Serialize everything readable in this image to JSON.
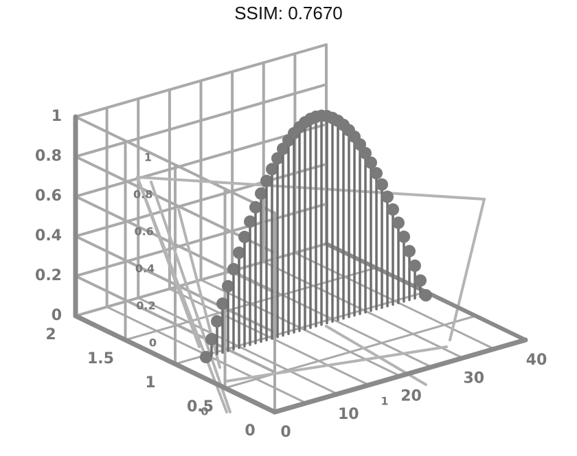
{
  "title": "SSIM: 0.7670",
  "chart_data": {
    "type": "stem3",
    "title": "SSIM: 0.7670",
    "x_axis": {
      "ticks": [
        "0",
        "10",
        "20",
        "30",
        "40"
      ],
      "range": [
        0,
        40
      ]
    },
    "y_axis": {
      "ticks": [
        "0",
        "0.5",
        "1",
        "1.5",
        "2"
      ],
      "range": [
        0,
        2
      ]
    },
    "z_axis": {
      "ticks": [
        "0",
        "0.2",
        "0.4",
        "0.6",
        "0.8",
        "1"
      ],
      "range": [
        0,
        1
      ]
    },
    "inner_y_ticks": [
      "0",
      "0.2",
      "0.4",
      "0.6",
      "0.8",
      "1"
    ],
    "extra_ticks": [
      "1",
      "0"
    ],
    "grid": true,
    "colors": {
      "stem": "#6e6e6e",
      "marker": "#7a7a7a",
      "axis": "#8a8a8a",
      "grid": "#a9a9a9"
    },
    "series": [
      {
        "x": [
          0,
          1,
          2,
          3,
          4,
          5,
          6,
          7,
          8,
          9,
          10,
          11,
          12,
          13,
          14,
          15,
          16,
          17,
          18,
          19,
          20,
          21,
          22,
          23,
          24,
          25,
          26,
          27,
          28,
          29,
          30,
          31,
          32,
          33,
          34,
          35,
          36,
          37,
          38,
          39,
          40
        ],
        "y": [
          0,
          0.05,
          0.1,
          0.15,
          0.2,
          0.25,
          0.3,
          0.35,
          0.4,
          0.45,
          0.5,
          0.55,
          0.6,
          0.65,
          0.7,
          0.75,
          0.8,
          0.85,
          0.9,
          0.95,
          1,
          1.05,
          1.1,
          1.15,
          1.2,
          1.25,
          1.3,
          1.35,
          1.4,
          1.45,
          1.5,
          1.55,
          1.6,
          1.65,
          1.7,
          1.75,
          1.8,
          1.85,
          1.9,
          1.95,
          2
        ],
        "z": [
          0,
          0.078,
          0.156,
          0.233,
          0.309,
          0.383,
          0.454,
          0.522,
          0.588,
          0.649,
          0.707,
          0.76,
          0.809,
          0.853,
          0.891,
          0.924,
          0.951,
          0.972,
          0.988,
          0.997,
          1,
          0.997,
          0.988,
          0.972,
          0.951,
          0.924,
          0.891,
          0.853,
          0.809,
          0.76,
          0.707,
          0.649,
          0.588,
          0.522,
          0.454,
          0.383,
          0.309,
          0.233,
          0.156,
          0.078,
          0
        ]
      }
    ]
  }
}
